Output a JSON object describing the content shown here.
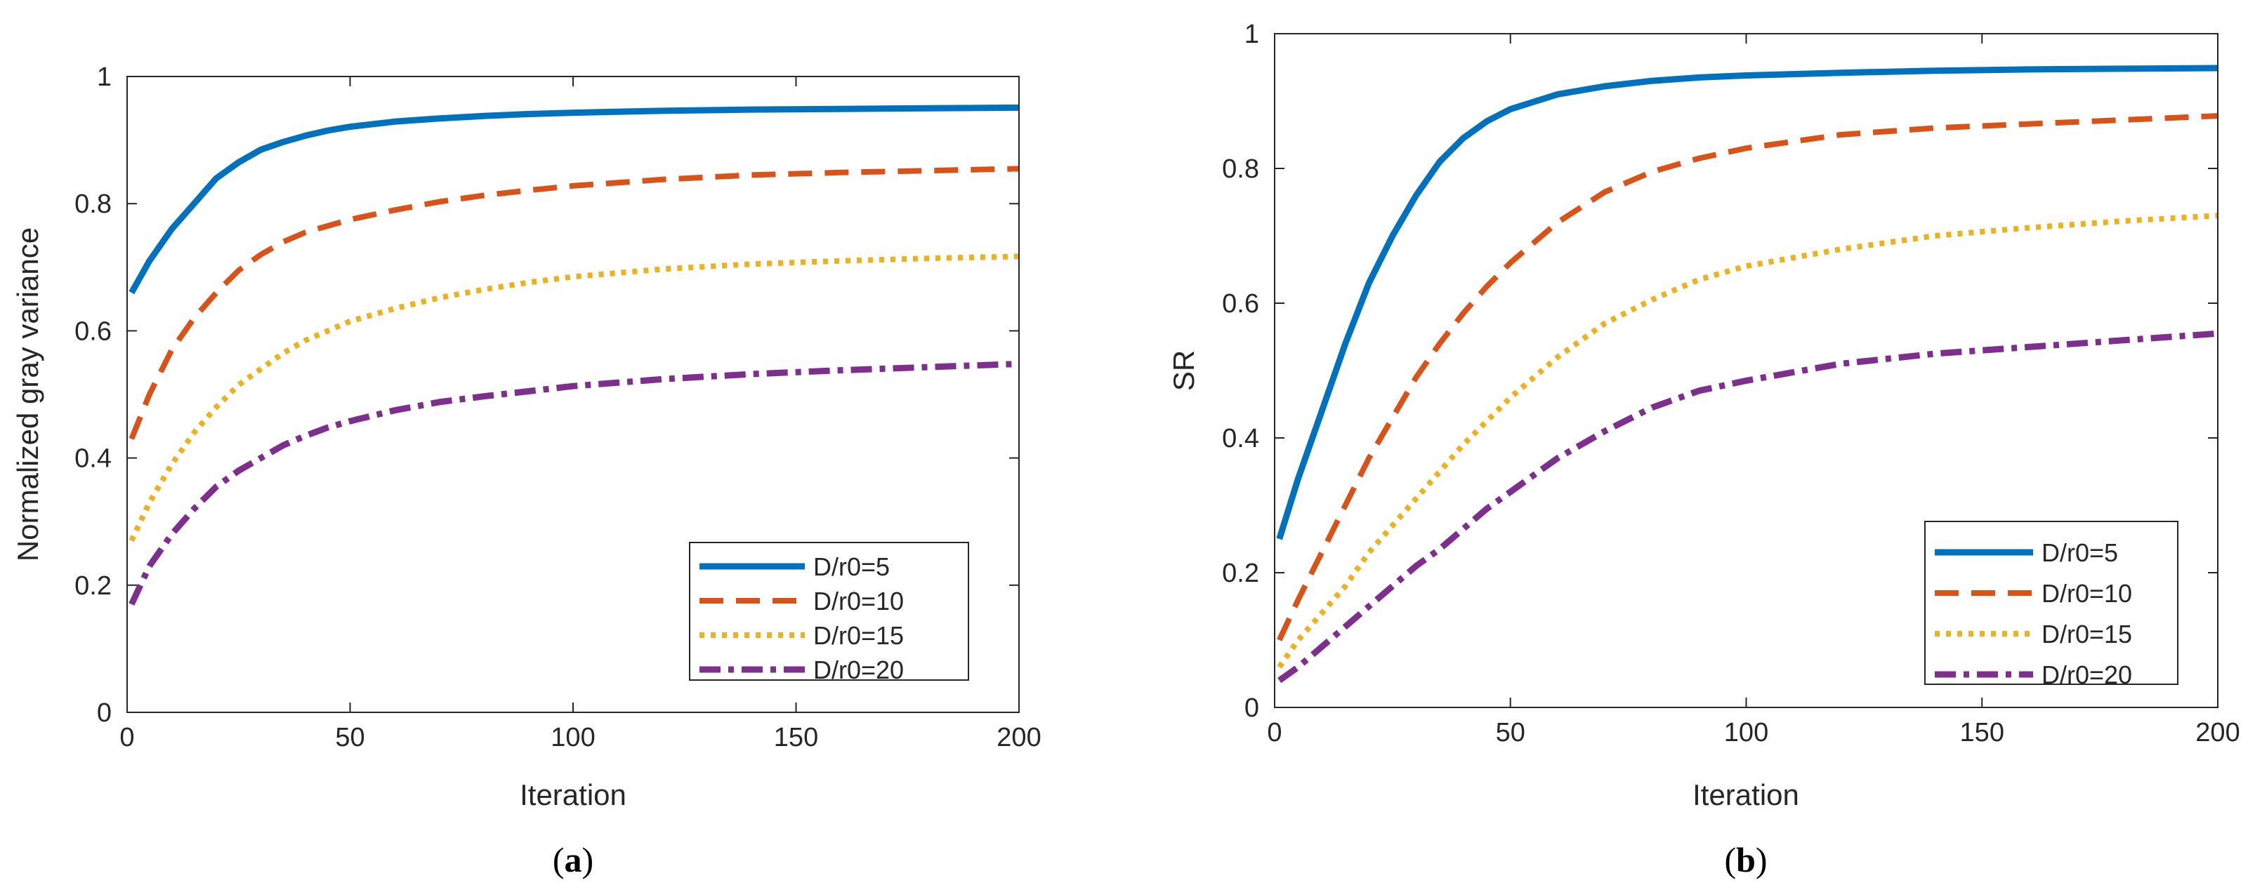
{
  "chart_data": [
    {
      "type": "line",
      "panel_label": "a",
      "xlabel": "Iteration",
      "ylabel": "Normalized gray variance",
      "xlim": [
        0,
        200
      ],
      "ylim": [
        0,
        1
      ],
      "xticks": [
        "0",
        "50",
        "100",
        "150",
        "200"
      ],
      "yticks": [
        "0",
        "0.2",
        "0.4",
        "0.6",
        "0.8",
        "1"
      ],
      "legend_position": "bottom-right",
      "x": [
        1,
        5,
        10,
        15,
        20,
        25,
        30,
        35,
        40,
        45,
        50,
        60,
        70,
        80,
        90,
        100,
        120,
        140,
        160,
        180,
        200
      ],
      "series": [
        {
          "name": "D/r0=5",
          "color": "#0072BD",
          "style": "solid",
          "values": [
            0.66,
            0.71,
            0.76,
            0.8,
            0.84,
            0.865,
            0.885,
            0.897,
            0.907,
            0.915,
            0.921,
            0.929,
            0.934,
            0.938,
            0.941,
            0.943,
            0.946,
            0.948,
            0.949,
            0.95,
            0.951
          ]
        },
        {
          "name": "D/r0=10",
          "color": "#D95319",
          "style": "dashed",
          "values": [
            0.43,
            0.5,
            0.57,
            0.62,
            0.66,
            0.695,
            0.72,
            0.74,
            0.755,
            0.765,
            0.775,
            0.79,
            0.803,
            0.813,
            0.821,
            0.828,
            0.838,
            0.845,
            0.849,
            0.852,
            0.855
          ]
        },
        {
          "name": "D/r0=15",
          "color": "#EDB120",
          "style": "dotted",
          "values": [
            0.27,
            0.33,
            0.39,
            0.44,
            0.48,
            0.515,
            0.54,
            0.565,
            0.585,
            0.6,
            0.615,
            0.635,
            0.652,
            0.665,
            0.676,
            0.685,
            0.697,
            0.705,
            0.71,
            0.714,
            0.717
          ]
        },
        {
          "name": "D/r0=20",
          "color": "#7E2F8E",
          "style": "dashdot",
          "values": [
            0.17,
            0.23,
            0.28,
            0.32,
            0.355,
            0.38,
            0.4,
            0.42,
            0.435,
            0.448,
            0.458,
            0.475,
            0.488,
            0.497,
            0.505,
            0.513,
            0.524,
            0.532,
            0.538,
            0.543,
            0.548
          ]
        }
      ]
    },
    {
      "type": "line",
      "panel_label": "b",
      "xlabel": "Iteration",
      "ylabel": "SR",
      "xlim": [
        0,
        200
      ],
      "ylim": [
        0,
        1
      ],
      "xticks": [
        "0",
        "50",
        "100",
        "150",
        "200"
      ],
      "yticks": [
        "0",
        "0.2",
        "0.4",
        "0.6",
        "0.8",
        "1"
      ],
      "legend_position": "bottom-right",
      "x": [
        1,
        5,
        10,
        15,
        20,
        25,
        30,
        35,
        40,
        45,
        50,
        60,
        70,
        80,
        90,
        100,
        120,
        140,
        160,
        180,
        200
      ],
      "series": [
        {
          "name": "D/r0=5",
          "color": "#0072BD",
          "style": "solid",
          "values": [
            0.25,
            0.34,
            0.44,
            0.54,
            0.63,
            0.7,
            0.76,
            0.81,
            0.845,
            0.87,
            0.888,
            0.91,
            0.922,
            0.93,
            0.935,
            0.938,
            0.942,
            0.945,
            0.947,
            0.948,
            0.949
          ]
        },
        {
          "name": "D/r0=10",
          "color": "#D95319",
          "style": "dashed",
          "values": [
            0.1,
            0.16,
            0.23,
            0.3,
            0.37,
            0.43,
            0.49,
            0.54,
            0.585,
            0.625,
            0.66,
            0.72,
            0.765,
            0.795,
            0.815,
            0.83,
            0.85,
            0.86,
            0.866,
            0.872,
            0.878
          ]
        },
        {
          "name": "D/r0=15",
          "color": "#EDB120",
          "style": "dotted",
          "values": [
            0.06,
            0.1,
            0.14,
            0.18,
            0.23,
            0.27,
            0.31,
            0.35,
            0.39,
            0.425,
            0.46,
            0.52,
            0.57,
            0.605,
            0.635,
            0.655,
            0.68,
            0.7,
            0.712,
            0.722,
            0.73
          ]
        },
        {
          "name": "D/r0=20",
          "color": "#7E2F8E",
          "style": "dashdot",
          "values": [
            0.04,
            0.06,
            0.09,
            0.12,
            0.15,
            0.18,
            0.21,
            0.235,
            0.265,
            0.295,
            0.32,
            0.37,
            0.41,
            0.445,
            0.47,
            0.485,
            0.51,
            0.525,
            0.535,
            0.545,
            0.555
          ]
        }
      ]
    }
  ],
  "captions": [
    {
      "open": "(",
      "letter": "a",
      "close": ")"
    },
    {
      "open": "(",
      "letter": "b",
      "close": ")"
    }
  ]
}
